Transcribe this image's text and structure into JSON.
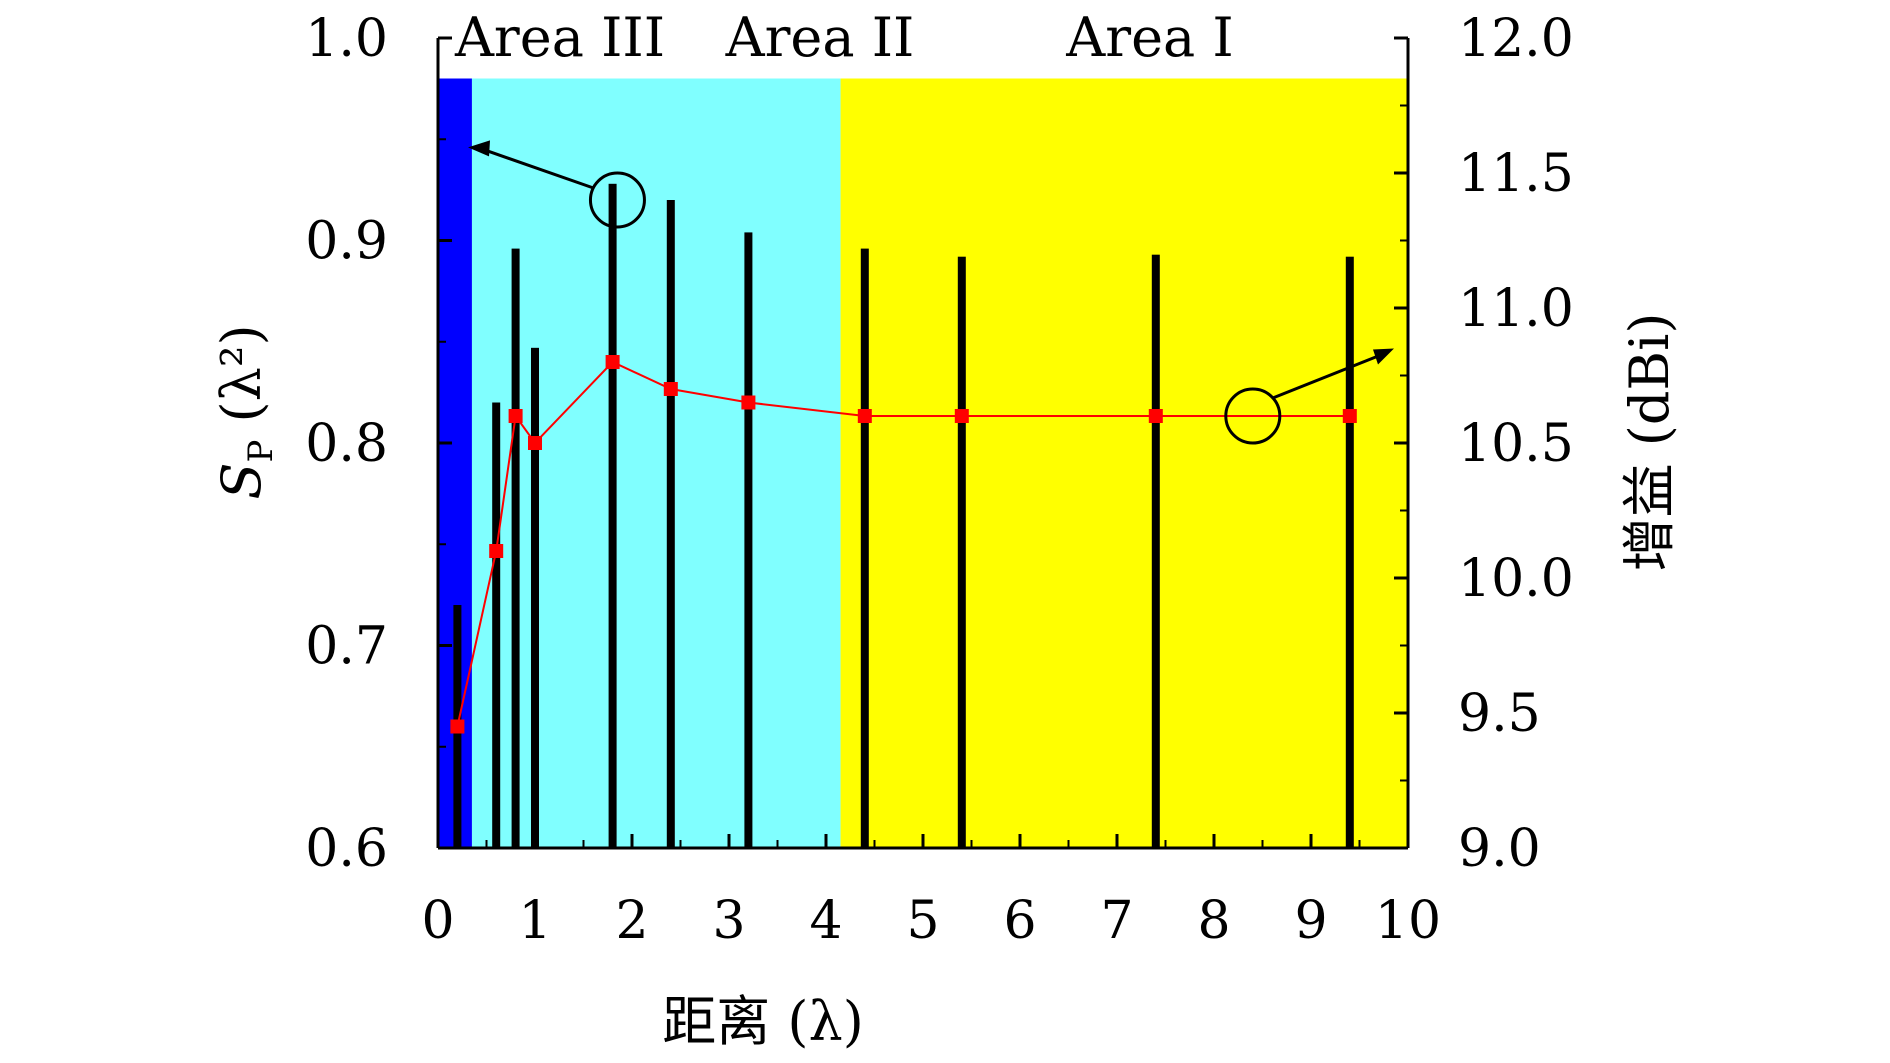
{
  "chart_data": {
    "type": "bar+line",
    "xlabel": "距离 (λ)",
    "ylabel_left": "S",
    "ylabel_left_sub": "P",
    "ylabel_left_unit": " (λ²)",
    "ylabel_right": "增益 (dBi)",
    "xlim": [
      0,
      10
    ],
    "ylim_left": [
      0.6,
      1.0
    ],
    "ylim_right": [
      9.0,
      12.0
    ],
    "x_ticks": [
      "0",
      "1",
      "2",
      "3",
      "4",
      "5",
      "6",
      "7",
      "8",
      "9",
      "10"
    ],
    "y_left_ticks": [
      "0.6",
      "0.7",
      "0.8",
      "0.9",
      "1.0"
    ],
    "y_right_ticks": [
      "9.0",
      "9.5",
      "10.0",
      "10.5",
      "11.0",
      "11.5",
      "12.0"
    ],
    "areas": [
      {
        "name": "Area III",
        "x_start": 0.0,
        "x_end": 0.35,
        "color": "#0000ff"
      },
      {
        "name": "Area II",
        "x_start": 0.35,
        "x_end": 4.15,
        "color": "#80ffff"
      },
      {
        "name": "Area I",
        "x_start": 4.15,
        "x_end": 10.0,
        "color": "#ffff00"
      }
    ],
    "area_band_top": 0.98,
    "bar_series": {
      "name": "S_P",
      "axis": "left",
      "color": "#000000",
      "x": [
        0.2,
        0.6,
        0.8,
        1.0,
        1.8,
        2.4,
        3.2,
        4.4,
        5.4,
        7.4,
        9.4
      ],
      "values": [
        0.72,
        0.82,
        0.896,
        0.847,
        0.928,
        0.92,
        0.904,
        0.896,
        0.892,
        0.893,
        0.892
      ]
    },
    "line_series": {
      "name": "增益",
      "axis": "right",
      "color": "#ff0000",
      "x": [
        0.2,
        0.6,
        0.8,
        1.0,
        1.8,
        2.4,
        3.2,
        4.4,
        5.4,
        7.4,
        9.4
      ],
      "values": [
        9.45,
        10.1,
        10.6,
        10.5,
        10.8,
        10.7,
        10.65,
        10.6,
        10.6,
        10.6,
        10.6
      ]
    },
    "grid": false,
    "legend": "none"
  }
}
